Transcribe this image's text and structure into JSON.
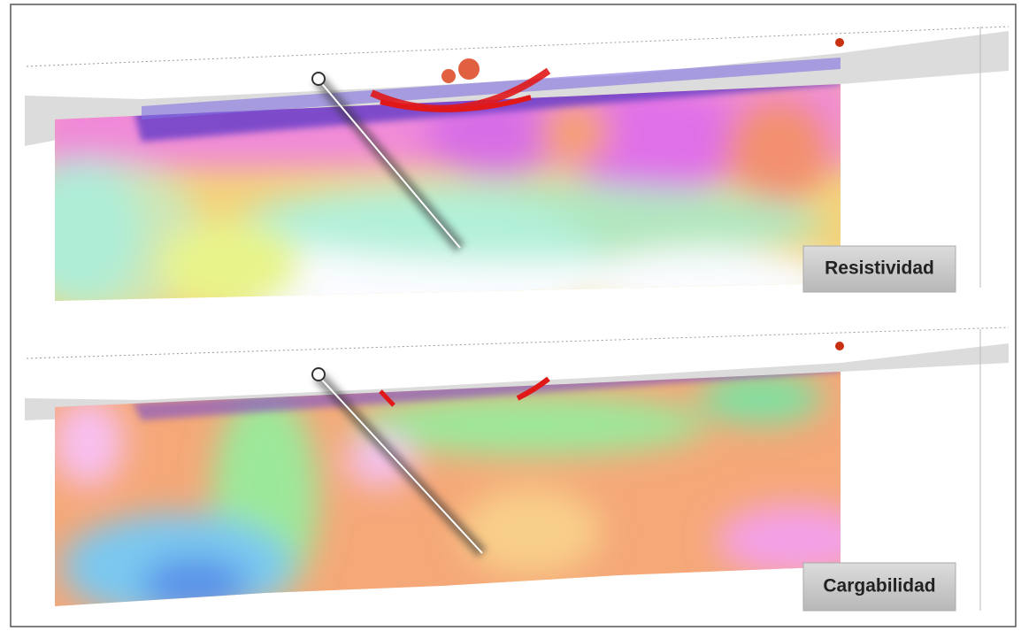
{
  "panels": [
    {
      "label": "Resistividad"
    },
    {
      "label": "Cargabilidad"
    }
  ]
}
